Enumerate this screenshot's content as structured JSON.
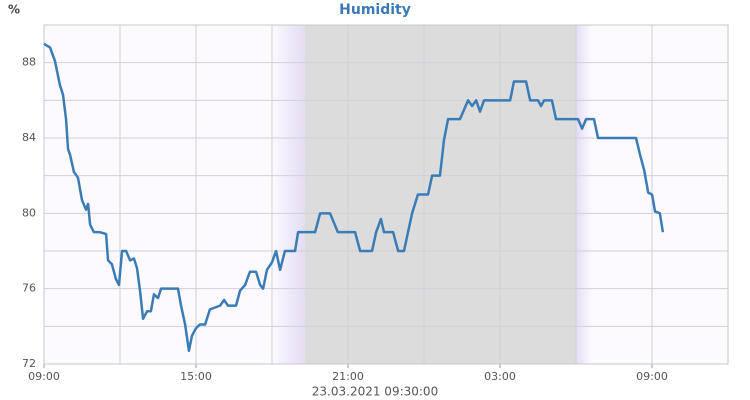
{
  "chart_data": {
    "type": "line",
    "title": "Humidity",
    "y_unit": "%",
    "x_label": "23.03.2021 09:30:00",
    "xlim": [
      0,
      27
    ],
    "xticks": [
      {
        "value": 0,
        "label": "09:00"
      },
      {
        "value": 6,
        "label": "15:00"
      },
      {
        "value": 12,
        "label": "21:00"
      },
      {
        "value": 18,
        "label": "03:00"
      },
      {
        "value": 24,
        "label": "09:00"
      }
    ],
    "ylim": [
      72,
      90
    ],
    "yticks": [
      72,
      76,
      80,
      84,
      88
    ],
    "grid": true,
    "minor_grid": true,
    "background": "#fcfaff",
    "shading": [
      {
        "from": 9,
        "to": 10.3,
        "color": "#e4dcf4",
        "fade": "in"
      },
      {
        "from": 10.3,
        "to": 21,
        "color": "#dcdcdc"
      },
      {
        "from": 21,
        "to": 21.6,
        "color": "#e4dcf4",
        "fade": "out"
      }
    ],
    "series": [
      {
        "name": "Humidity",
        "color": "#3a7cb5",
        "x": [
          0,
          0.24,
          0.43,
          0.63,
          0.75,
          0.87,
          0.95,
          1.03,
          1.18,
          1.34,
          1.5,
          1.66,
          1.74,
          1.82,
          1.97,
          2.21,
          2.45,
          2.53,
          2.68,
          2.84,
          2.96,
          3.08,
          3.24,
          3.4,
          3.55,
          3.67,
          3.79,
          3.91,
          4.07,
          4.22,
          4.34,
          4.5,
          4.62,
          4.97,
          5.29,
          5.41,
          5.57,
          5.72,
          5.84,
          6,
          6.16,
          6.36,
          6.55,
          6.75,
          6.95,
          7.11,
          7.26,
          7.58,
          7.74,
          7.94,
          8.13,
          8.37,
          8.53,
          8.65,
          8.8,
          9,
          9.16,
          9.32,
          9.51,
          9.91,
          10.03,
          10.7,
          10.9,
          11.29,
          11.6,
          12.28,
          12.48,
          12.95,
          13.11,
          13.3,
          13.42,
          13.78,
          13.98,
          14.21,
          14.37,
          14.53,
          14.76,
          15.16,
          15.32,
          15.63,
          15.79,
          15.95,
          16.42,
          16.58,
          16.74,
          16.9,
          17.06,
          17.21,
          17.37,
          18,
          18.4,
          18.55,
          19.03,
          19.19,
          19.5,
          19.62,
          19.74,
          20.05,
          20.21,
          21.08,
          21.24,
          21.4,
          21.71,
          21.87,
          22.54,
          23.37,
          23.53,
          23.69,
          23.85,
          24,
          24.12,
          24.31,
          24.43
        ],
        "values": [
          89,
          88.8,
          88.1,
          86.8,
          86.3,
          85,
          83.4,
          83.1,
          82.2,
          81.9,
          80.7,
          80.2,
          80.5,
          79.4,
          79,
          79,
          78.9,
          77.5,
          77.3,
          76.5,
          76.2,
          78,
          78,
          77.5,
          77.6,
          77.1,
          75.9,
          74.4,
          74.8,
          74.8,
          75.7,
          75.5,
          76,
          76,
          76,
          75.1,
          74.1,
          72.7,
          73.5,
          73.9,
          74.1,
          74.1,
          74.9,
          75,
          75.1,
          75.4,
          75.1,
          75.1,
          75.9,
          76.2,
          76.9,
          76.9,
          76.2,
          76,
          77,
          77.4,
          78,
          77,
          78,
          78,
          79,
          79,
          80,
          80,
          79,
          79,
          78,
          78,
          79,
          79.7,
          79,
          79,
          78,
          78,
          79,
          80,
          81,
          81,
          82,
          82,
          83.9,
          85,
          85,
          85.5,
          86,
          85.7,
          86,
          85.4,
          86,
          86,
          86,
          87,
          87,
          86,
          86,
          85.7,
          86,
          86,
          85,
          85,
          84.5,
          85,
          85,
          84,
          84,
          84,
          83.1,
          82.3,
          81.1,
          81,
          80.1,
          80,
          79
        ]
      }
    ]
  }
}
